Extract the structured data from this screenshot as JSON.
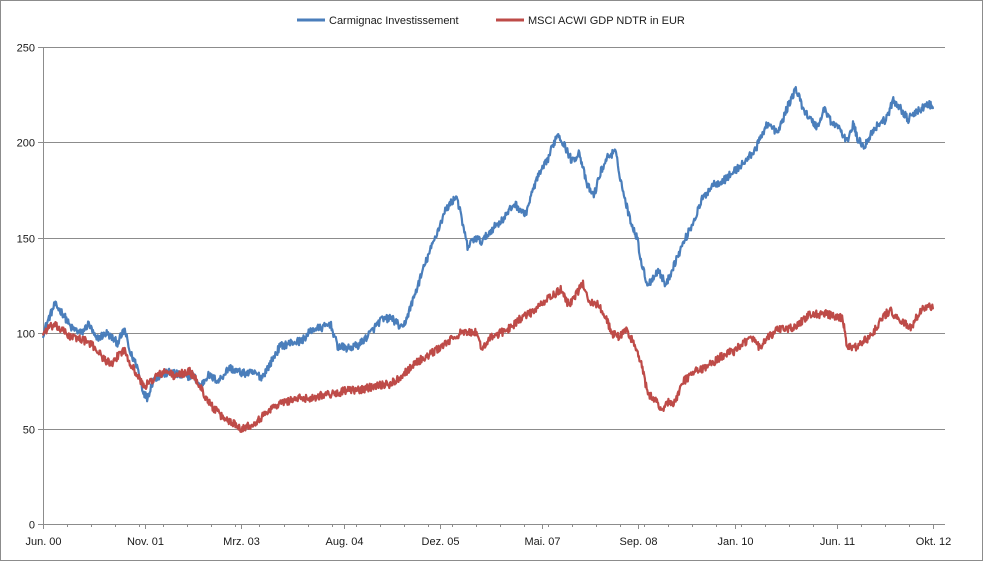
{
  "chart_data": {
    "type": "line",
    "title": "",
    "xlabel": "",
    "ylabel": "",
    "ylim": [
      0,
      250
    ],
    "yticks": [
      "0",
      "50",
      "100",
      "150",
      "200",
      "250"
    ],
    "xrange_years": [
      2000.417,
      2012.917
    ],
    "xticks": [
      {
        "label": "Jun. 00",
        "t": 2000.417
      },
      {
        "label": "Nov. 01",
        "t": 2001.833
      },
      {
        "label": "Mrz. 03",
        "t": 2003.167
      },
      {
        "label": "Aug. 04",
        "t": 2004.583
      },
      {
        "label": "Dez. 05",
        "t": 2005.917
      },
      {
        "label": "Mai. 07",
        "t": 2007.333
      },
      {
        "label": "Sep. 08",
        "t": 2008.667
      },
      {
        "label": "Jan. 10",
        "t": 2010.0
      },
      {
        "label": "Jun. 11",
        "t": 2011.417
      },
      {
        "label": "Okt. 12",
        "t": 2012.75
      }
    ],
    "grid": "horizontal",
    "legend_position": "top-center",
    "series": [
      {
        "name": "Carmignac Investissement",
        "color": "#4a7ebb",
        "points": [
          [
            2000.42,
            100
          ],
          [
            2000.5,
            108
          ],
          [
            2000.58,
            115
          ],
          [
            2000.7,
            110
          ],
          [
            2000.8,
            103
          ],
          [
            2000.95,
            100
          ],
          [
            2001.05,
            105
          ],
          [
            2001.15,
            97
          ],
          [
            2001.3,
            100
          ],
          [
            2001.45,
            95
          ],
          [
            2001.55,
            102
          ],
          [
            2001.62,
            90
          ],
          [
            2001.72,
            83
          ],
          [
            2001.8,
            70
          ],
          [
            2001.86,
            66
          ],
          [
            2001.95,
            76
          ],
          [
            2002.05,
            78
          ],
          [
            2002.2,
            80
          ],
          [
            2002.35,
            77
          ],
          [
            2002.5,
            78
          ],
          [
            2002.6,
            72
          ],
          [
            2002.7,
            78
          ],
          [
            2002.85,
            75
          ],
          [
            2003.0,
            82
          ],
          [
            2003.1,
            80
          ],
          [
            2003.2,
            79
          ],
          [
            2003.35,
            79
          ],
          [
            2003.45,
            77
          ],
          [
            2003.55,
            83
          ],
          [
            2003.7,
            93
          ],
          [
            2003.85,
            95
          ],
          [
            2004.0,
            96
          ],
          [
            2004.15,
            102
          ],
          [
            2004.3,
            103
          ],
          [
            2004.4,
            105
          ],
          [
            2004.5,
            93
          ],
          [
            2004.65,
            92
          ],
          [
            2004.8,
            94
          ],
          [
            2004.95,
            100
          ],
          [
            2005.1,
            107
          ],
          [
            2005.25,
            108
          ],
          [
            2005.4,
            102
          ],
          [
            2005.55,
            118
          ],
          [
            2005.7,
            135
          ],
          [
            2005.85,
            150
          ],
          [
            2006.0,
            165
          ],
          [
            2006.15,
            172
          ],
          [
            2006.3,
            145
          ],
          [
            2006.4,
            150
          ],
          [
            2006.5,
            148
          ],
          [
            2006.65,
            155
          ],
          [
            2006.8,
            160
          ],
          [
            2006.95,
            168
          ],
          [
            2007.1,
            162
          ],
          [
            2007.25,
            180
          ],
          [
            2007.4,
            190
          ],
          [
            2007.5,
            200
          ],
          [
            2007.55,
            205
          ],
          [
            2007.65,
            198
          ],
          [
            2007.75,
            190
          ],
          [
            2007.85,
            195
          ],
          [
            2007.95,
            178
          ],
          [
            2008.05,
            172
          ],
          [
            2008.15,
            185
          ],
          [
            2008.25,
            193
          ],
          [
            2008.35,
            195
          ],
          [
            2008.45,
            175
          ],
          [
            2008.55,
            160
          ],
          [
            2008.65,
            150
          ],
          [
            2008.72,
            135
          ],
          [
            2008.8,
            125
          ],
          [
            2008.88,
            130
          ],
          [
            2008.95,
            133
          ],
          [
            2009.05,
            125
          ],
          [
            2009.15,
            135
          ],
          [
            2009.3,
            148
          ],
          [
            2009.45,
            160
          ],
          [
            2009.55,
            170
          ],
          [
            2009.7,
            178
          ],
          [
            2009.85,
            180
          ],
          [
            2010.0,
            185
          ],
          [
            2010.15,
            190
          ],
          [
            2010.3,
            197
          ],
          [
            2010.45,
            210
          ],
          [
            2010.6,
            205
          ],
          [
            2010.75,
            220
          ],
          [
            2010.85,
            228
          ],
          [
            2010.95,
            218
          ],
          [
            2011.05,
            212
          ],
          [
            2011.15,
            208
          ],
          [
            2011.25,
            218
          ],
          [
            2011.35,
            210
          ],
          [
            2011.45,
            208
          ],
          [
            2011.55,
            200
          ],
          [
            2011.65,
            210
          ],
          [
            2011.7,
            202
          ],
          [
            2011.8,
            198
          ],
          [
            2011.9,
            205
          ],
          [
            2012.0,
            210
          ],
          [
            2012.1,
            212
          ],
          [
            2012.2,
            222
          ],
          [
            2012.3,
            218
          ],
          [
            2012.4,
            212
          ],
          [
            2012.5,
            215
          ],
          [
            2012.6,
            218
          ],
          [
            2012.7,
            220
          ],
          [
            2012.75,
            218
          ]
        ]
      },
      {
        "name": "MSCI ACWI GDP NDTR in EUR",
        "color": "#be4b48",
        "points": [
          [
            2000.42,
            100
          ],
          [
            2000.5,
            103
          ],
          [
            2000.58,
            104
          ],
          [
            2000.7,
            101
          ],
          [
            2000.8,
            98
          ],
          [
            2000.95,
            97
          ],
          [
            2001.05,
            95
          ],
          [
            2001.15,
            92
          ],
          [
            2001.25,
            87
          ],
          [
            2001.38,
            83
          ],
          [
            2001.48,
            90
          ],
          [
            2001.55,
            91
          ],
          [
            2001.62,
            85
          ],
          [
            2001.72,
            78
          ],
          [
            2001.82,
            72
          ],
          [
            2001.92,
            75
          ],
          [
            2002.0,
            78
          ],
          [
            2002.15,
            80
          ],
          [
            2002.25,
            77
          ],
          [
            2002.35,
            79
          ],
          [
            2002.45,
            80
          ],
          [
            2002.55,
            75
          ],
          [
            2002.65,
            68
          ],
          [
            2002.75,
            62
          ],
          [
            2002.9,
            56
          ],
          [
            2003.0,
            54
          ],
          [
            2003.1,
            52
          ],
          [
            2003.17,
            50
          ],
          [
            2003.3,
            52
          ],
          [
            2003.45,
            56
          ],
          [
            2003.55,
            60
          ],
          [
            2003.7,
            63
          ],
          [
            2003.85,
            65
          ],
          [
            2004.0,
            66
          ],
          [
            2004.15,
            66
          ],
          [
            2004.3,
            68
          ],
          [
            2004.45,
            68
          ],
          [
            2004.6,
            70
          ],
          [
            2004.75,
            70
          ],
          [
            2004.9,
            71
          ],
          [
            2005.05,
            73
          ],
          [
            2005.2,
            73
          ],
          [
            2005.3,
            75
          ],
          [
            2005.45,
            80
          ],
          [
            2005.6,
            85
          ],
          [
            2005.75,
            88
          ],
          [
            2005.9,
            92
          ],
          [
            2006.05,
            96
          ],
          [
            2006.2,
            100
          ],
          [
            2006.3,
            100
          ],
          [
            2006.4,
            101
          ],
          [
            2006.5,
            92
          ],
          [
            2006.6,
            97
          ],
          [
            2006.75,
            100
          ],
          [
            2006.9,
            103
          ],
          [
            2007.0,
            107
          ],
          [
            2007.15,
            110
          ],
          [
            2007.3,
            114
          ],
          [
            2007.4,
            118
          ],
          [
            2007.5,
            120
          ],
          [
            2007.6,
            123
          ],
          [
            2007.7,
            115
          ],
          [
            2007.8,
            120
          ],
          [
            2007.9,
            126
          ],
          [
            2008.0,
            116
          ],
          [
            2008.1,
            115
          ],
          [
            2008.2,
            110
          ],
          [
            2008.3,
            100
          ],
          [
            2008.4,
            98
          ],
          [
            2008.5,
            102
          ],
          [
            2008.6,
            95
          ],
          [
            2008.7,
            85
          ],
          [
            2008.8,
            68
          ],
          [
            2008.9,
            65
          ],
          [
            2009.0,
            60
          ],
          [
            2009.1,
            65
          ],
          [
            2009.15,
            62
          ],
          [
            2009.3,
            75
          ],
          [
            2009.45,
            80
          ],
          [
            2009.6,
            82
          ],
          [
            2009.75,
            86
          ],
          [
            2009.9,
            90
          ],
          [
            2010.0,
            90
          ],
          [
            2010.1,
            95
          ],
          [
            2010.25,
            97
          ],
          [
            2010.35,
            92
          ],
          [
            2010.45,
            97
          ],
          [
            2010.6,
            102
          ],
          [
            2010.75,
            102
          ],
          [
            2010.9,
            105
          ],
          [
            2011.05,
            110
          ],
          [
            2011.15,
            110
          ],
          [
            2011.3,
            110
          ],
          [
            2011.4,
            108
          ],
          [
            2011.5,
            108
          ],
          [
            2011.55,
            94
          ],
          [
            2011.65,
            92
          ],
          [
            2011.75,
            95
          ],
          [
            2011.85,
            97
          ],
          [
            2011.95,
            102
          ],
          [
            2012.05,
            108
          ],
          [
            2012.15,
            112
          ],
          [
            2012.25,
            108
          ],
          [
            2012.35,
            105
          ],
          [
            2012.45,
            103
          ],
          [
            2012.55,
            110
          ],
          [
            2012.65,
            114
          ],
          [
            2012.75,
            113
          ]
        ]
      }
    ]
  }
}
